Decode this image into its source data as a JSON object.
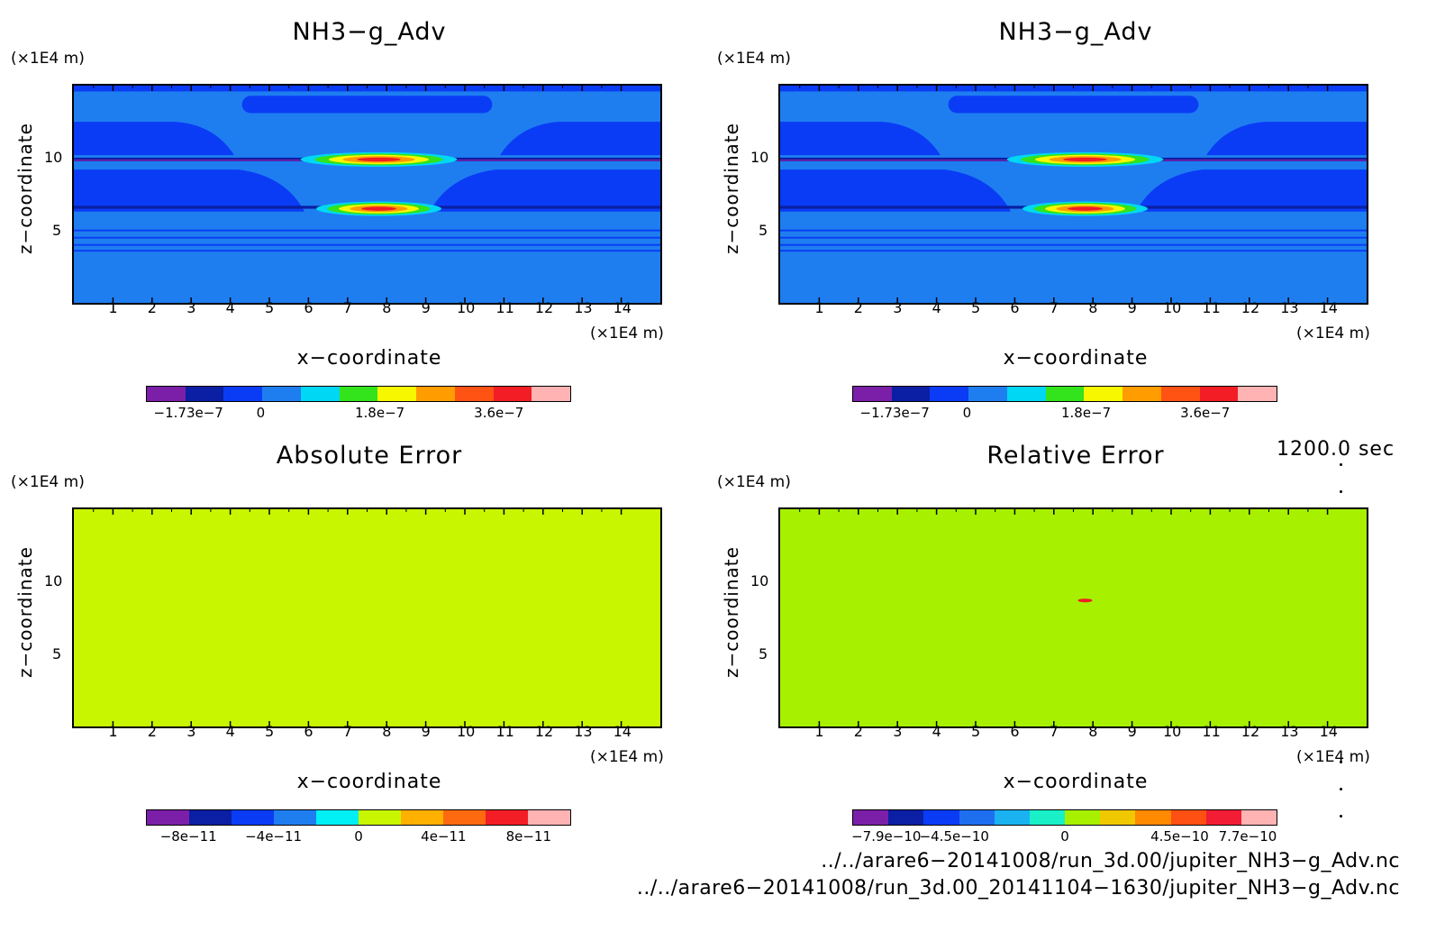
{
  "panels": [
    {
      "id": "p1",
      "title": "NH3−g_Adv",
      "z_unit": "(×1E4 m)",
      "x_unit": "(×1E4 m)",
      "xlabel": "x−coordinate",
      "zlabel": "z−coordinate",
      "background": "#1e7ef0",
      "colorbar": {
        "colors": [
          "#7b1fa8",
          "#0a1fa3",
          "#0a3cf5",
          "#1e7ef0",
          "#00d7f5",
          "#33e31c",
          "#f7f700",
          "#ff9d00",
          "#ff5314",
          "#f21d25",
          "#ffb3b3"
        ],
        "labels": [
          "−1.73e−7",
          "0",
          "1.8e−7",
          "3.6e−7"
        ],
        "label_positions": [
          0.1,
          0.27,
          0.55,
          0.83
        ]
      }
    },
    {
      "id": "p2",
      "title": "NH3−g_Adv",
      "z_unit": "(×1E4 m)",
      "x_unit": "(×1E4 m)",
      "xlabel": "x−coordinate",
      "zlabel": "z−coordinate",
      "background": "#1e7ef0",
      "colorbar": {
        "colors": [
          "#7b1fa8",
          "#0a1fa3",
          "#0a3cf5",
          "#1e7ef0",
          "#00d7f5",
          "#33e31c",
          "#f7f700",
          "#ff9d00",
          "#ff5314",
          "#f21d25",
          "#ffb3b3"
        ],
        "labels": [
          "−1.73e−7",
          "0",
          "1.8e−7",
          "3.6e−7"
        ],
        "label_positions": [
          0.1,
          0.27,
          0.55,
          0.83
        ]
      }
    },
    {
      "id": "p3",
      "title": "Absolute Error",
      "z_unit": "(×1E4 m)",
      "x_unit": "(×1E4 m)",
      "xlabel": "x−coordinate",
      "zlabel": "z−coordinate",
      "background": "#c8f500",
      "colorbar": {
        "colors": [
          "#7b1fa8",
          "#0a1fa3",
          "#0a3cf5",
          "#1e7ef0",
          "#00f0f5",
          "#c8f500",
          "#ffb000",
          "#ff6a10",
          "#f21d25",
          "#ffb3b3"
        ],
        "labels": [
          "−8e−11",
          "−4e−11",
          "0",
          "4e−11",
          "8e−11"
        ],
        "label_positions": [
          0.1,
          0.3,
          0.5,
          0.7,
          0.9
        ]
      }
    },
    {
      "id": "p4",
      "title": "Relative Error",
      "z_unit": "(×1E4 m)",
      "x_unit": "(×1E4 m)",
      "xlabel": "x−coordinate",
      "zlabel": "z−coordinate",
      "background": "#a6f000",
      "colorbar": {
        "colors": [
          "#7b1fa8",
          "#0a1fa3",
          "#0a3cf5",
          "#1e6ef0",
          "#1ab2f0",
          "#1af0c8",
          "#a6f000",
          "#f0c800",
          "#ff8a00",
          "#ff5014",
          "#f21d35",
          "#ffb3b3"
        ],
        "labels": [
          "−7.9e−10",
          "−4.5e−10",
          "0",
          "4.5e−10",
          "7.7e−10"
        ],
        "label_positions": [
          0.08,
          0.24,
          0.5,
          0.77,
          0.93
        ]
      }
    }
  ],
  "chart_data": [
    {
      "type": "heatmap",
      "title": "NH3−g_Adv",
      "xlabel": "x−coordinate",
      "ylabel": "z−coordinate",
      "xlim": [
        0,
        15
      ],
      "ylim": [
        0,
        15
      ],
      "x_ticks": [
        "1",
        "2",
        "3",
        "4",
        "5",
        "6",
        "7",
        "8",
        "9",
        "10",
        "11",
        "12",
        "13",
        "14"
      ],
      "z_ticks": [
        "5",
        "10"
      ],
      "colorbar_range": [
        -1.73e-07,
        4.5e-07
      ],
      "features": [
        {
          "kind": "positive_max",
          "x": 7.8,
          "z": 9.9
        },
        {
          "kind": "positive_max",
          "x": 7.8,
          "z": 6.5
        }
      ]
    },
    {
      "type": "heatmap",
      "title": "NH3−g_Adv",
      "xlabel": "x−coordinate",
      "ylabel": "z−coordinate",
      "xlim": [
        0,
        15
      ],
      "ylim": [
        0,
        15
      ],
      "x_ticks": [
        "1",
        "2",
        "3",
        "4",
        "5",
        "6",
        "7",
        "8",
        "9",
        "10",
        "11",
        "12",
        "13",
        "14"
      ],
      "z_ticks": [
        "5",
        "10"
      ],
      "colorbar_range": [
        -1.73e-07,
        4.5e-07
      ]
    },
    {
      "type": "heatmap",
      "title": "Absolute Error",
      "xlabel": "x−coordinate",
      "ylabel": "z−coordinate",
      "xlim": [
        0,
        15
      ],
      "ylim": [
        0,
        15
      ],
      "x_ticks": [
        "1",
        "2",
        "3",
        "4",
        "5",
        "6",
        "7",
        "8",
        "9",
        "10",
        "11",
        "12",
        "13",
        "14"
      ],
      "z_ticks": [
        "5",
        "10"
      ],
      "colorbar_range": [
        -1e-10,
        1e-10
      ]
    },
    {
      "type": "heatmap",
      "title": "Relative Error",
      "xlabel": "x−coordinate",
      "ylabel": "z−coordinate",
      "xlim": [
        0,
        15
      ],
      "ylim": [
        0,
        15
      ],
      "x_ticks": [
        "1",
        "2",
        "3",
        "4",
        "5",
        "6",
        "7",
        "8",
        "9",
        "10",
        "11",
        "12",
        "13",
        "14"
      ],
      "z_ticks": [
        "5",
        "10"
      ],
      "colorbar_range": [
        -7.9e-10,
        7.7e-10
      ]
    }
  ],
  "timestamp": "1200.0 sec",
  "footer": {
    "file1": "../../arare6−20141008/run_3d.00/jupiter_NH3−g_Adv.nc",
    "file2": "../../arare6−20141008/run_3d.00_20141104−1630/jupiter_NH3−g_Adv.nc"
  }
}
